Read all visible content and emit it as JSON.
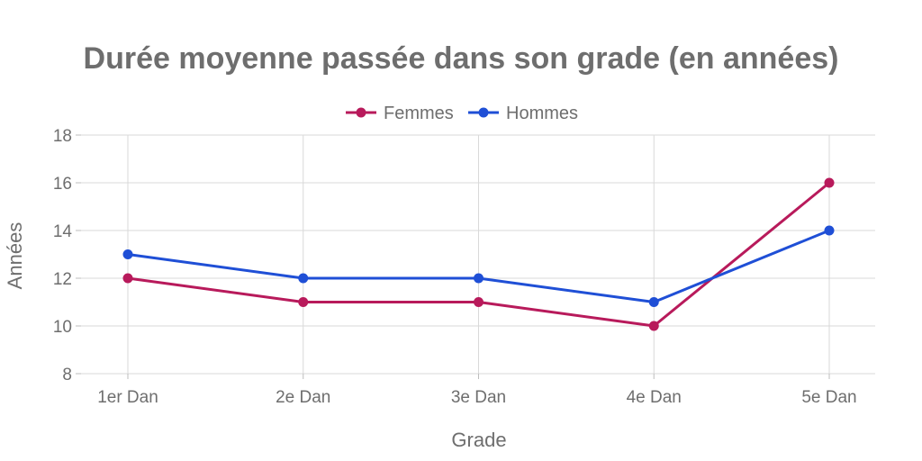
{
  "chart_data": {
    "type": "line",
    "title": "Durée moyenne passée dans son grade (en années)",
    "xlabel": "Grade",
    "ylabel": "Années",
    "categories": [
      "1er Dan",
      "2e Dan",
      "3e Dan",
      "4e Dan",
      "5e Dan"
    ],
    "yticks": [
      "8",
      "10",
      "12",
      "14",
      "16",
      "18"
    ],
    "ylim": [
      8,
      18
    ],
    "grid": true,
    "legend_position": "top-center",
    "series": [
      {
        "name": "Femmes",
        "color": "#b81a5b",
        "values": [
          12,
          11,
          11,
          10,
          16
        ]
      },
      {
        "name": "Hommes",
        "color": "#1f4fd6",
        "values": [
          13,
          12,
          12,
          11,
          14
        ]
      }
    ]
  }
}
